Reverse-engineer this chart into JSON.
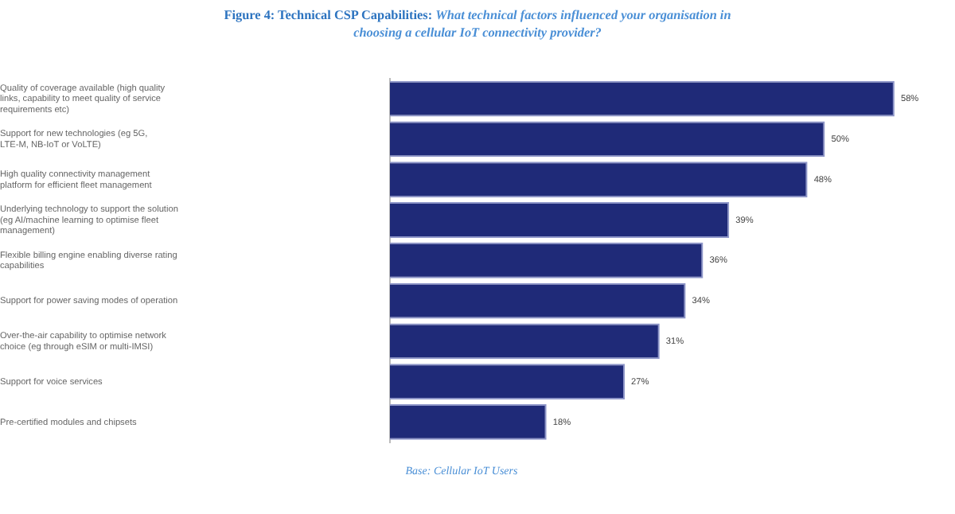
{
  "chart_data": {
    "type": "bar",
    "orientation": "horizontal",
    "title": "Figure 4: Technical CSP Capabilities:",
    "subtitle": "What technical factors influenced your organisation in choosing a cellular IoT connectivity provider?",
    "categories": [
      "Quality of coverage available (high quality links, capability to meet quality of service requirements etc)",
      "Support for new technologies (eg 5G, LTE-M, NB-IoT or VoLTE)",
      "High quality connectivity management platform for efficient fleet management",
      "Underlying technology to support the solution (eg AI/machine learning to optimise fleet management)",
      "Flexible billing engine enabling diverse rating capabilities",
      "Support for power saving modes of operation",
      "Over-the-air capability to optimise network choice (eg through eSIM or multi-IMSI)",
      "Support for voice services",
      "Pre-certified modules and chipsets"
    ],
    "values": [
      58,
      50,
      48,
      39,
      36,
      34,
      31,
      27,
      18
    ],
    "value_labels": [
      "58%",
      "50%",
      "48%",
      "39%",
      "36%",
      "34%",
      "31%",
      "27%",
      "18%"
    ],
    "color": "#1f2a78",
    "annotations": [
      "Base: Cellular IoT Users"
    ]
  }
}
